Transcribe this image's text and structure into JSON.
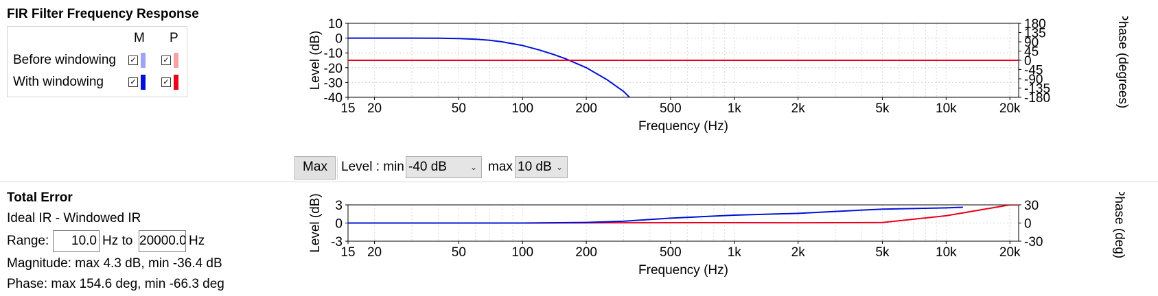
{
  "legend": {
    "title": "FIR Filter Frequency Response",
    "col_m": "M",
    "col_p": "P",
    "rows": [
      {
        "label": "Before windowing",
        "m_checked": true,
        "p_checked": true,
        "m_color": "#9fa3f5",
        "p_color": "#f5a3a3"
      },
      {
        "label": "With windowing",
        "m_checked": true,
        "p_checked": true,
        "m_color": "#0010d8",
        "p_color": "#e8001c"
      }
    ],
    "check_glyph": "✓"
  },
  "controls": {
    "max_button": "Max",
    "level_min_label": "Level : min",
    "level_min_value": "-40 dB",
    "level_max_label": "max",
    "level_max_value": "10 dB"
  },
  "error_panel": {
    "title": "Total Error",
    "subtitle": "Ideal IR - Windowed IR",
    "range_label": "Range:",
    "range_from": "10.0",
    "hz_to": "Hz to",
    "range_to": "20000.0",
    "hz": "Hz",
    "magnitude": "Magnitude: max  4.3 dB, min -36.4 dB",
    "phase": "Phase: max 154.6 deg, min -66.3 deg"
  },
  "chart_data": [
    {
      "type": "line",
      "name": "frequency-response",
      "xlabel": "Frequency (Hz)",
      "ylabel": "Level (dB)",
      "y2label": "Phase (degrees)",
      "x_scale": "log",
      "xlim": [
        15,
        22000
      ],
      "ylim": [
        -40,
        10
      ],
      "y2lim": [
        -180,
        180
      ],
      "x_ticks": [
        15,
        20,
        50,
        100,
        200,
        500,
        1000,
        2000,
        5000,
        10000,
        20000
      ],
      "x_tick_labels": [
        "15",
        "20",
        "50",
        "100",
        "200",
        "500",
        "1k",
        "2k",
        "5k",
        "10k",
        "20k"
      ],
      "y_ticks": [
        10,
        0,
        -10,
        -20,
        -30,
        -40
      ],
      "y_tick_labels": [
        "10",
        "0",
        "-10",
        "-20",
        "-30",
        "-40"
      ],
      "y2_ticks": [
        180,
        135,
        90,
        45,
        0,
        -45,
        -90,
        -135,
        -180
      ],
      "y2_tick_labels": [
        "180",
        "135",
        "90",
        "45",
        "0",
        "-45",
        "-90",
        "-135",
        "-180"
      ],
      "grid": true,
      "series": [
        {
          "color": "#0010d8",
          "axis": "left",
          "x": [
            15,
            20,
            30,
            40,
            50,
            60,
            70,
            80,
            100,
            120,
            140,
            160,
            200,
            250,
            300,
            320
          ],
          "y": [
            0,
            0,
            0,
            -0.1,
            -0.3,
            -0.8,
            -1.5,
            -2.5,
            -5,
            -8,
            -11,
            -14,
            -20,
            -28,
            -36,
            -40
          ]
        },
        {
          "color": "#e8001c",
          "axis": "right",
          "x": [
            15,
            20,
            50,
            100,
            200,
            500,
            1000,
            2000,
            5000,
            10000,
            20000,
            22000
          ],
          "y": [
            0,
            0,
            0,
            0,
            0,
            0,
            0,
            0,
            0,
            0,
            0,
            0
          ]
        }
      ]
    },
    {
      "type": "line",
      "name": "total-error",
      "xlabel": "Frequency (Hz)",
      "ylabel": "Level (dB)",
      "y2label": "Phase (deg)",
      "x_scale": "log",
      "xlim": [
        15,
        22000
      ],
      "ylim": [
        -3,
        3
      ],
      "y2lim": [
        -30,
        30
      ],
      "x_ticks": [
        15,
        20,
        50,
        100,
        200,
        500,
        1000,
        2000,
        5000,
        10000,
        20000
      ],
      "x_tick_labels": [
        "15",
        "20",
        "50",
        "100",
        "200",
        "500",
        "1k",
        "2k",
        "5k",
        "10k",
        "20k"
      ],
      "y_ticks": [
        3,
        0,
        -3
      ],
      "y_tick_labels": [
        "3",
        "0",
        "-3"
      ],
      "y2_ticks": [
        30,
        0,
        -30
      ],
      "y2_tick_labels": [
        "30",
        "0",
        "-30"
      ],
      "grid": true,
      "series": [
        {
          "color": "#e8001c",
          "axis": "right",
          "x": [
            15,
            100,
            200,
            300,
            1000,
            2000,
            5000,
            10000,
            20000,
            22000
          ],
          "y": [
            0,
            0,
            0.2,
            0.5,
            0.6,
            0.5,
            0.8,
            12,
            30,
            30
          ]
        },
        {
          "color": "#0010d8",
          "axis": "left",
          "x": [
            15,
            100,
            200,
            300,
            500,
            1000,
            2000,
            5000,
            10000,
            12000
          ],
          "y": [
            0,
            0,
            0.1,
            0.3,
            0.8,
            1.3,
            1.6,
            2.3,
            2.5,
            2.6
          ]
        }
      ]
    }
  ]
}
